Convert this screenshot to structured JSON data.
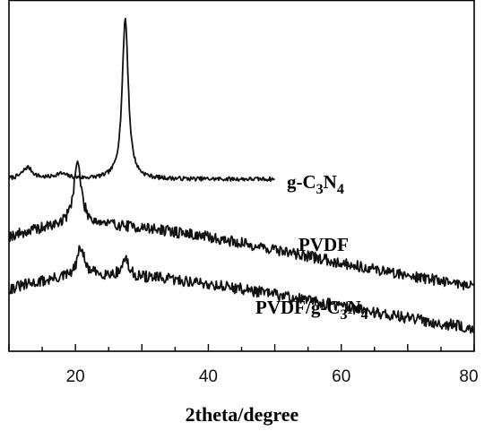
{
  "chart_data": {
    "type": "line",
    "xlabel": "2theta/degree",
    "ylabel": "",
    "title": "",
    "xlim": [
      10,
      80
    ],
    "x_ticks": [
      "20",
      "40",
      "60",
      "80"
    ],
    "y_ticks_labeled": false,
    "grid": false,
    "legend": "none (series labelled inline)",
    "line_color": "#111111",
    "series": [
      {
        "name": "g-C3N4",
        "label_parts": [
          "g-C",
          "3",
          "N",
          "4"
        ],
        "x_range": [
          10,
          50
        ],
        "baseline": 0.0,
        "noise": 0.025,
        "peaks": [
          {
            "x": 12.8,
            "height": 0.14,
            "width": 0.9
          },
          {
            "x": 17.8,
            "height": 0.06,
            "width": 1.2
          },
          {
            "x": 27.5,
            "height": 1.95,
            "width": 0.55
          }
        ]
      },
      {
        "name": "PVDF",
        "label_parts": [
          "PVDF"
        ],
        "x_range": [
          10,
          80
        ],
        "baseline": 0.0,
        "noise": 0.07,
        "hump": {
          "center": 23.5,
          "height": 0.6,
          "width": 14
        },
        "peaks": [
          {
            "x": 20.3,
            "height": 0.78,
            "width": 0.7
          }
        ]
      },
      {
        "name": "PVDF/g-C3N4",
        "label_parts": [
          "PVDF/g-C",
          "3",
          "N",
          "4"
        ],
        "x_range": [
          10,
          80
        ],
        "baseline": 0.0,
        "noise": 0.07,
        "hump": {
          "center": 25.5,
          "height": 0.58,
          "width": 15
        },
        "peaks": [
          {
            "x": 20.8,
            "height": 0.35,
            "width": 0.6
          },
          {
            "x": 27.5,
            "height": 0.22,
            "width": 0.5
          }
        ]
      }
    ]
  }
}
